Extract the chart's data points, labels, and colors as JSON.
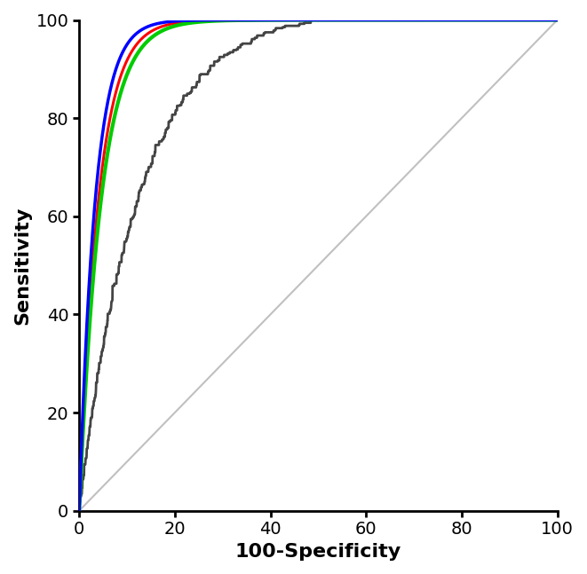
{
  "title": "",
  "xlabel": "100-Specificity",
  "ylabel": "Sensitivity",
  "xlim": [
    0,
    100
  ],
  "ylim": [
    0,
    100
  ],
  "xticks": [
    0,
    20,
    40,
    60,
    80,
    100
  ],
  "yticks": [
    0,
    20,
    40,
    60,
    80,
    100
  ],
  "background_color": "#ffffff",
  "diagonal_color": "#c0c0c0",
  "diagonal_lw": 1.5,
  "blue_color": "#0000ff",
  "green_color": "#00cc00",
  "red_color": "#ff0000",
  "black_color": "#444444",
  "blue_lw": 2.5,
  "green_lw": 3.0,
  "red_lw": 2.2,
  "black_lw": 2.0,
  "axis_lw": 2.0,
  "tick_fontsize": 14,
  "label_fontsize": 16
}
